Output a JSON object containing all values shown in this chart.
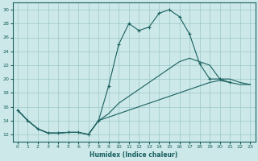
{
  "xlabel": "Humidex (Indice chaleur)",
  "bg_color": "#cce8e8",
  "grid_color": "#9dc8c8",
  "line_color": "#1a6060",
  "xlim": [
    -0.5,
    23.5
  ],
  "ylim": [
    11,
    31
  ],
  "yticks": [
    12,
    14,
    16,
    18,
    20,
    22,
    24,
    26,
    28,
    30
  ],
  "xticks": [
    0,
    1,
    2,
    3,
    4,
    5,
    6,
    7,
    8,
    9,
    10,
    11,
    12,
    13,
    14,
    15,
    16,
    17,
    18,
    19,
    20,
    21,
    22,
    23
  ],
  "series1_x": [
    0,
    1,
    2,
    3,
    4,
    5,
    6,
    7,
    8,
    9,
    10,
    11,
    12,
    13,
    14,
    15,
    16,
    17,
    18,
    19,
    20,
    21
  ],
  "series1_y": [
    15.5,
    14.0,
    12.8,
    12.2,
    12.2,
    12.3,
    12.3,
    12.0,
    14.0,
    19.0,
    25.0,
    28.0,
    27.0,
    27.5,
    29.5,
    30.0,
    29.0,
    26.5,
    22.2,
    20.0,
    20.0,
    19.5
  ],
  "series2_x": [
    0,
    1,
    2,
    3,
    4,
    5,
    6,
    7,
    8,
    9,
    10,
    11,
    12,
    13,
    14,
    15,
    16,
    17,
    18,
    19,
    20,
    21,
    22,
    23
  ],
  "series2_y": [
    15.5,
    14.0,
    12.8,
    12.2,
    12.2,
    12.3,
    12.3,
    12.0,
    14.0,
    15.0,
    16.5,
    17.5,
    18.5,
    19.5,
    20.5,
    21.5,
    22.5,
    23.0,
    22.5,
    22.0,
    20.0,
    20.0,
    19.5,
    19.2
  ],
  "series3_x": [
    0,
    1,
    2,
    3,
    4,
    5,
    6,
    7,
    8,
    9,
    10,
    11,
    12,
    13,
    14,
    15,
    16,
    17,
    18,
    19,
    20,
    21,
    22,
    23
  ],
  "series3_y": [
    15.5,
    14.0,
    12.8,
    12.2,
    12.2,
    12.3,
    12.3,
    12.0,
    14.0,
    14.5,
    15.0,
    15.5,
    16.0,
    16.5,
    17.0,
    17.5,
    18.0,
    18.5,
    19.0,
    19.5,
    19.8,
    19.5,
    19.2,
    19.2
  ]
}
